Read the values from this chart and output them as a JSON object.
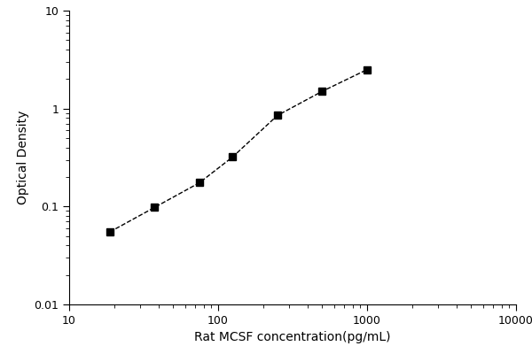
{
  "x": [
    18.75,
    37.5,
    75,
    125,
    250,
    500,
    1000
  ],
  "y": [
    0.055,
    0.098,
    0.175,
    0.32,
    0.85,
    1.5,
    2.5
  ],
  "xlim": [
    10,
    10000
  ],
  "ylim": [
    0.01,
    10
  ],
  "xlabel": "Rat MCSF concentration(pg/mL)",
  "ylabel": "Optical Density",
  "marker": "s",
  "marker_color": "black",
  "marker_size": 6,
  "line_style": "--",
  "line_color": "black",
  "line_width": 1.0,
  "background_color": "#ffffff",
  "yticks": [
    0.01,
    0.1,
    1,
    10
  ],
  "ytick_labels": [
    "0.01",
    "0.1",
    "1",
    "10"
  ],
  "xticks": [
    10,
    100,
    1000,
    10000
  ],
  "xtick_labels": [
    "10",
    "100",
    "1000",
    "10000"
  ]
}
